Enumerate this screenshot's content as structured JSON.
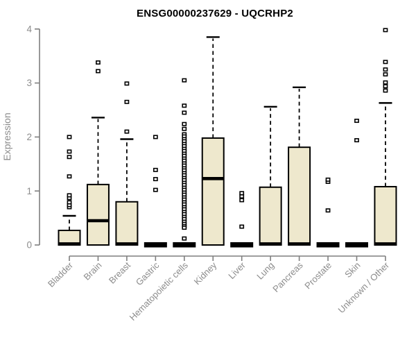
{
  "chart_data": {
    "type": "boxplot",
    "title": "ENSG00000237629 - UQCRHP2",
    "xlabel": "",
    "ylabel": "Expression",
    "ylim": [
      0,
      4
    ],
    "yticks": [
      0,
      1,
      2,
      3,
      4
    ],
    "grid": false,
    "legend": null,
    "colors": {
      "box_fill": "#EEE8CD",
      "box_stroke": "#000000",
      "median": "#000000",
      "outlier_fill": "#ffffff",
      "axis_line": "#7f7f7f",
      "axis_text": "#8c8c8c",
      "title": "#000000",
      "background": "#ffffff"
    },
    "categories": [
      "Bladder",
      "Brain",
      "Breast",
      "Gastric",
      "Hematopoietic cells",
      "Kidney",
      "Liver",
      "Lung",
      "Pancreas",
      "Prostate",
      "Skin",
      "Unknown / Other"
    ],
    "series": [
      {
        "category": "Bladder",
        "q1": 0,
        "median": 0.02,
        "q3": 0.27,
        "whisker_low": 0,
        "whisker_high": 0.54,
        "outliers": [
          0.7,
          0.74,
          0.79,
          0.87,
          0.92,
          1.27,
          1.63,
          1.73,
          2.0
        ]
      },
      {
        "category": "Brain",
        "q1": 0,
        "median": 0.45,
        "q3": 1.12,
        "whisker_low": 0,
        "whisker_high": 2.36,
        "outliers": [
          3.22,
          3.38
        ]
      },
      {
        "category": "Breast",
        "q1": 0,
        "median": 0.02,
        "q3": 0.8,
        "whisker_low": 0,
        "whisker_high": 1.96,
        "outliers": [
          2.1,
          2.65,
          2.99
        ]
      },
      {
        "category": "Gastric",
        "q1": 0,
        "median": 0,
        "q3": 0,
        "whisker_low": 0,
        "whisker_high": 0,
        "outliers": [
          1.02,
          1.22,
          1.39,
          2.0
        ]
      },
      {
        "category": "Hematopoietic cells",
        "q1": 0,
        "median": 0,
        "q3": 0,
        "whisker_low": 0,
        "whisker_high": 0,
        "outliers": [
          3.05,
          2.58,
          2.45,
          2.24,
          2.15,
          2.05,
          2.01,
          1.96,
          1.92,
          1.87,
          1.83,
          1.78,
          1.74,
          1.69,
          1.65,
          1.6,
          1.56,
          1.51,
          1.47,
          1.42,
          1.38,
          1.33,
          1.29,
          1.24,
          1.2,
          1.15,
          1.11,
          1.06,
          1.02,
          0.97,
          0.93,
          0.88,
          0.84,
          0.79,
          0.75,
          0.7,
          0.66,
          0.61,
          0.57,
          0.52,
          0.48,
          0.43,
          0.39,
          0.35,
          0.32,
          0.12
        ]
      },
      {
        "category": "Kidney",
        "q1": 0,
        "median": 1.23,
        "q3": 1.98,
        "whisker_low": 0,
        "whisker_high": 3.85,
        "outliers": []
      },
      {
        "category": "Liver",
        "q1": 0,
        "median": 0,
        "q3": 0,
        "whisker_low": 0,
        "whisker_high": 0,
        "outliers": [
          0.34,
          0.83,
          0.9,
          0.96
        ]
      },
      {
        "category": "Lung",
        "q1": 0,
        "median": 0.02,
        "q3": 1.07,
        "whisker_low": 0,
        "whisker_high": 2.56,
        "outliers": []
      },
      {
        "category": "Pancreas",
        "q1": 0,
        "median": 0.02,
        "q3": 1.81,
        "whisker_low": 0,
        "whisker_high": 2.92,
        "outliers": []
      },
      {
        "category": "Prostate",
        "q1": 0,
        "median": 0,
        "q3": 0,
        "whisker_low": 0,
        "whisker_high": 0,
        "outliers": [
          0.64,
          1.17,
          1.21
        ]
      },
      {
        "category": "Skin",
        "q1": 0,
        "median": 0,
        "q3": 0,
        "whisker_low": 0,
        "whisker_high": 0,
        "outliers": [
          1.94,
          2.3
        ]
      },
      {
        "category": "Unknown / Other",
        "q1": 0,
        "median": 0.02,
        "q3": 1.08,
        "whisker_low": 0,
        "whisker_high": 2.63,
        "outliers": [
          2.86,
          2.94,
          3.01,
          3.16,
          3.25,
          3.39,
          3.98
        ]
      }
    ]
  }
}
